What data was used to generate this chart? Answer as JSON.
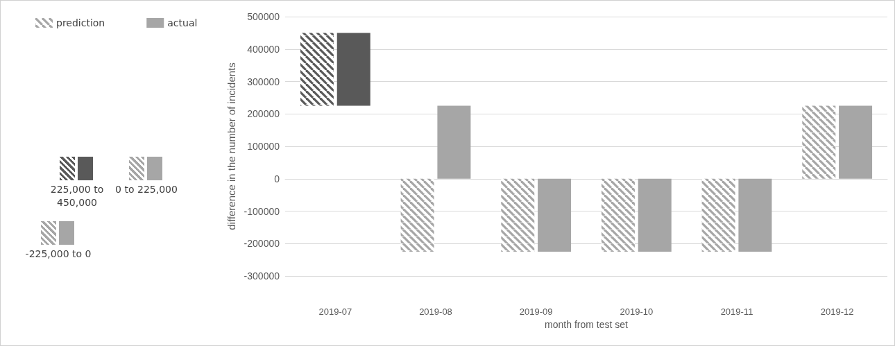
{
  "chart_data": {
    "type": "bar",
    "xlabel": "month from test set",
    "ylabel": "difference in the number of incidents",
    "categories": [
      "2019-07",
      "2019-08",
      "2019-09",
      "2019-10",
      "2019-11",
      "2019-12"
    ],
    "series": [
      {
        "name": "prediction",
        "color": "#a6a6a6",
        "values": [
          225000,
          225000,
          225000,
          225000,
          225000,
          225000
        ],
        "base": [
          225000,
          -225000,
          -225000,
          -225000,
          -225000,
          0
        ],
        "colors": [
          "#595959",
          "#a6a6a6",
          "#a6a6a6",
          "#a6a6a6",
          "#a6a6a6",
          "#a6a6a6"
        ]
      },
      {
        "name": "actual",
        "color": "#a6a6a6",
        "values": [
          225000,
          225000,
          225000,
          225000,
          225000,
          225000
        ],
        "base": [
          225000,
          0,
          -225000,
          -225000,
          -225000,
          0
        ],
        "colors": [
          "#595959",
          "#a6a6a6",
          "#a6a6a6",
          "#a6a6a6",
          "#a6a6a6",
          "#a6a6a6"
        ]
      }
    ],
    "ylim": [
      -300000,
      500000
    ],
    "yticks": [
      -300000,
      -200000,
      -100000,
      0,
      100000,
      200000,
      300000,
      400000,
      500000
    ],
    "grid": "y",
    "legend": "left",
    "annotations": [
      "225,000 to 450,000",
      "0 to 225,000",
      "-225,000 to 0"
    ]
  }
}
